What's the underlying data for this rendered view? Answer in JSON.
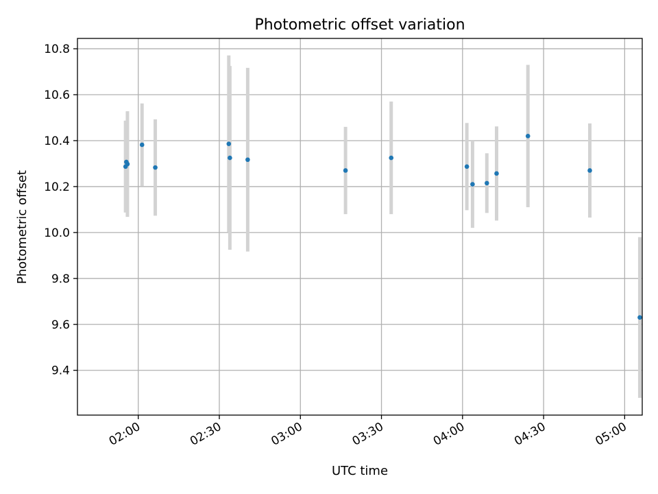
{
  "chart_data": {
    "type": "scatter",
    "title": "Photometric offset variation",
    "xlabel": "UTC time",
    "ylabel": "Photometric offset",
    "grid": true,
    "xlim_minutes": [
      97.5,
      306.5
    ],
    "ylim": [
      9.205,
      10.845
    ],
    "x_ticks": [
      {
        "minutes": 120,
        "label": "02:00"
      },
      {
        "minutes": 150,
        "label": "02:30"
      },
      {
        "minutes": 180,
        "label": "03:00"
      },
      {
        "minutes": 210,
        "label": "03:30"
      },
      {
        "minutes": 240,
        "label": "04:00"
      },
      {
        "minutes": 270,
        "label": "04:30"
      },
      {
        "minutes": 300,
        "label": "05:00"
      }
    ],
    "y_ticks": [
      {
        "value": 9.4,
        "label": "9.4"
      },
      {
        "value": 9.6,
        "label": "9.6"
      },
      {
        "value": 9.8,
        "label": "9.8"
      },
      {
        "value": 10.0,
        "label": "10.0"
      },
      {
        "value": 10.2,
        "label": "10.2"
      },
      {
        "value": 10.4,
        "label": "10.4"
      },
      {
        "value": 10.6,
        "label": "10.6"
      },
      {
        "value": 10.8,
        "label": "10.8"
      }
    ],
    "point_color": "#1f77b4",
    "errorbar_color": "#d3d3d3",
    "points": [
      {
        "t": 115.3,
        "y": 10.287,
        "err": 0.2
      },
      {
        "t": 115.6,
        "y": 10.307,
        "err": 0.18
      },
      {
        "t": 116.0,
        "y": 10.298,
        "err": 0.23
      },
      {
        "t": 121.4,
        "y": 10.382,
        "err": 0.18
      },
      {
        "t": 126.3,
        "y": 10.283,
        "err": 0.21
      },
      {
        "t": 153.5,
        "y": 10.386,
        "err": 0.385
      },
      {
        "t": 153.9,
        "y": 10.325,
        "err": 0.4
      },
      {
        "t": 160.5,
        "y": 10.317,
        "err": 0.4
      },
      {
        "t": 196.7,
        "y": 10.27,
        "err": 0.19
      },
      {
        "t": 213.6,
        "y": 10.325,
        "err": 0.245
      },
      {
        "t": 241.6,
        "y": 10.287,
        "err": 0.19
      },
      {
        "t": 243.7,
        "y": 10.21,
        "err": 0.19
      },
      {
        "t": 249.0,
        "y": 10.215,
        "err": 0.13
      },
      {
        "t": 252.6,
        "y": 10.257,
        "err": 0.205
      },
      {
        "t": 264.2,
        "y": 10.42,
        "err": 0.31
      },
      {
        "t": 287.1,
        "y": 10.27,
        "err": 0.205
      },
      {
        "t": 305.6,
        "y": 9.63,
        "err": 0.35
      }
    ]
  }
}
